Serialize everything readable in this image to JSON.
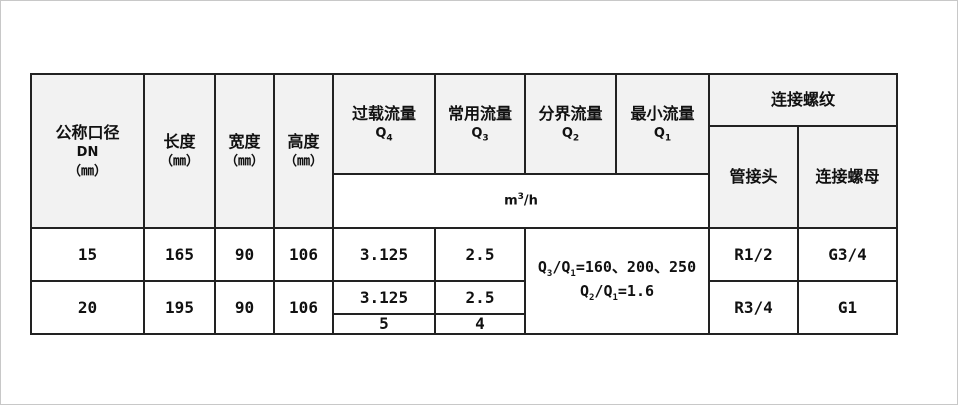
{
  "header": {
    "dn": {
      "label": "公称口径",
      "sub": "DN",
      "unit": "（㎜）"
    },
    "length": {
      "label": "长度",
      "unit": "（㎜）"
    },
    "width": {
      "label": "宽度",
      "unit": "（㎜）"
    },
    "height": {
      "label": "高度",
      "unit": "（㎜）"
    },
    "q4": {
      "label": "过载流量",
      "symbol": "Q",
      "subscript": "4"
    },
    "q3": {
      "label": "常用流量",
      "symbol": "Q",
      "subscript": "3"
    },
    "q2": {
      "label": "分界流量",
      "symbol": "Q",
      "subscript": "2"
    },
    "q1": {
      "label": "最小流量",
      "symbol": "Q",
      "subscript": "1"
    },
    "flow_unit": {
      "base": "m",
      "exp": "3",
      "rest": "/h"
    },
    "thread": "连接螺纹",
    "pipe_joint": "管接头",
    "nut": "连接螺母"
  },
  "rows": [
    {
      "dn": "15",
      "length": "165",
      "width": "90",
      "height": "106",
      "q4": [
        "3.125"
      ],
      "q3": [
        "2.5"
      ],
      "pipe_joint": "R1/2",
      "nut": "G3/4"
    },
    {
      "dn": "20",
      "length": "195",
      "width": "90",
      "height": "106",
      "q4": [
        "3.125",
        "5"
      ],
      "q3": [
        "2.5",
        "4"
      ],
      "pipe_joint": "R3/4",
      "nut": "G1"
    }
  ],
  "ratios": {
    "r1": {
      "a": "3",
      "b": "1",
      "value": "=160、200、250"
    },
    "r2": {
      "a": "2",
      "b": "1",
      "value": "=1.6"
    }
  }
}
